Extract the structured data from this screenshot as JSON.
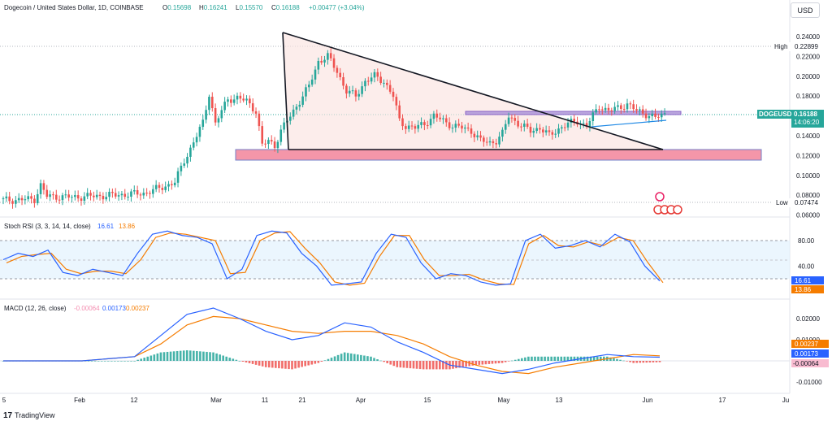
{
  "header": {
    "title": "Dogecoin / United States Dollar, 1D, COINBASE",
    "o_label": "O",
    "o": "0.15698",
    "h_label": "H",
    "h": "0.16241",
    "l_label": "L",
    "l": "0.15570",
    "c_label": "C",
    "c": "0.16188",
    "change": "+0.00477 (+3.04%)",
    "currency_button": "USD"
  },
  "colors": {
    "up": "#26a69a",
    "down": "#ef5350",
    "rsi_k": "#2962ff",
    "rsi_d": "#f57c00",
    "macd": "#2962ff",
    "signal": "#f57c00",
    "price_tag": "#26a69a",
    "support_zone": "#f06a85",
    "resistance_zone": "#b39ddb"
  },
  "price_labels": {
    "high_label": "High",
    "high_value": "0.22899",
    "low_label": "Low",
    "low_value": "0.07474",
    "symbol_tag": "DOGEUSD",
    "last_price": "0.16188",
    "countdown": "14:06:20"
  },
  "brand": {
    "logo_text": "17",
    "name": "TradingView"
  },
  "chart_data": [
    {
      "type": "candlestick",
      "title": "Dogecoin / United States Dollar, 1D, COINBASE",
      "x_ticks": [
        "5",
        "Feb",
        "12",
        "Mar",
        "11",
        "21",
        "Apr",
        "15",
        "May",
        "13",
        "Jun",
        "17",
        "Ju"
      ],
      "y_ticks": [
        "0.24000",
        "0.22000",
        "0.20000",
        "0.18000",
        "0.16000",
        "0.14000",
        "0.12000",
        "0.10000",
        "0.08000",
        "0.06000"
      ],
      "ylim": [
        0.06,
        0.245
      ],
      "annotations": [
        "descending triangle",
        "support zone 0.117-0.128",
        "resistance zone 0.160-0.163",
        "ascending trendline"
      ],
      "close_anchors": [
        {
          "x": 0,
          "y": 0.075
        },
        {
          "x": 10,
          "y": 0.076
        },
        {
          "x": 12,
          "y": 0.09
        },
        {
          "x": 14,
          "y": 0.079
        },
        {
          "x": 22,
          "y": 0.078
        },
        {
          "x": 35,
          "y": 0.08
        },
        {
          "x": 45,
          "y": 0.082
        },
        {
          "x": 50,
          "y": 0.087
        },
        {
          "x": 55,
          "y": 0.093
        },
        {
          "x": 58,
          "y": 0.115
        },
        {
          "x": 60,
          "y": 0.127
        },
        {
          "x": 62,
          "y": 0.14
        },
        {
          "x": 64,
          "y": 0.153
        },
        {
          "x": 66,
          "y": 0.183
        },
        {
          "x": 68,
          "y": 0.152
        },
        {
          "x": 70,
          "y": 0.165
        },
        {
          "x": 72,
          "y": 0.177
        },
        {
          "x": 75,
          "y": 0.178
        },
        {
          "x": 78,
          "y": 0.175
        },
        {
          "x": 81,
          "y": 0.165
        },
        {
          "x": 83,
          "y": 0.13
        },
        {
          "x": 85,
          "y": 0.135
        },
        {
          "x": 87,
          "y": 0.13
        },
        {
          "x": 89,
          "y": 0.145
        },
        {
          "x": 92,
          "y": 0.16
        },
        {
          "x": 95,
          "y": 0.175
        },
        {
          "x": 98,
          "y": 0.19
        },
        {
          "x": 101,
          "y": 0.215
        },
        {
          "x": 104,
          "y": 0.22
        },
        {
          "x": 107,
          "y": 0.205
        },
        {
          "x": 110,
          "y": 0.185
        },
        {
          "x": 113,
          "y": 0.18
        },
        {
          "x": 116,
          "y": 0.195
        },
        {
          "x": 119,
          "y": 0.2
        },
        {
          "x": 122,
          "y": 0.195
        },
        {
          "x": 125,
          "y": 0.18
        },
        {
          "x": 127,
          "y": 0.155
        },
        {
          "x": 129,
          "y": 0.15
        },
        {
          "x": 132,
          "y": 0.148
        },
        {
          "x": 135,
          "y": 0.152
        },
        {
          "x": 138,
          "y": 0.16
        },
        {
          "x": 141,
          "y": 0.155
        },
        {
          "x": 144,
          "y": 0.15
        },
        {
          "x": 147,
          "y": 0.148
        },
        {
          "x": 150,
          "y": 0.145
        },
        {
          "x": 153,
          "y": 0.135
        },
        {
          "x": 156,
          "y": 0.133
        },
        {
          "x": 158,
          "y": 0.135
        },
        {
          "x": 160,
          "y": 0.142
        },
        {
          "x": 162,
          "y": 0.16
        },
        {
          "x": 164,
          "y": 0.155
        },
        {
          "x": 166,
          "y": 0.15
        },
        {
          "x": 169,
          "y": 0.145
        },
        {
          "x": 172,
          "y": 0.148
        },
        {
          "x": 175,
          "y": 0.14
        },
        {
          "x": 178,
          "y": 0.147
        },
        {
          "x": 181,
          "y": 0.152
        },
        {
          "x": 184,
          "y": 0.155
        },
        {
          "x": 187,
          "y": 0.15
        },
        {
          "x": 189,
          "y": 0.16
        },
        {
          "x": 191,
          "y": 0.17
        },
        {
          "x": 194,
          "y": 0.165
        },
        {
          "x": 197,
          "y": 0.168
        },
        {
          "x": 200,
          "y": 0.172
        },
        {
          "x": 203,
          "y": 0.165
        },
        {
          "x": 206,
          "y": 0.162
        },
        {
          "x": 209,
          "y": 0.158
        },
        {
          "x": 212,
          "y": 0.162
        }
      ]
    },
    {
      "type": "line",
      "title": "Stoch RSI (3, 3, 14, 14, close)",
      "values_label": [
        "16.61",
        "13.86"
      ],
      "y_ticks": [
        "80.00",
        "40.00"
      ],
      "ylim": [
        0,
        100
      ],
      "band": [
        20,
        80
      ],
      "series": [
        {
          "name": "K",
          "values": [
            50,
            60,
            55,
            65,
            30,
            25,
            35,
            30,
            25,
            60,
            90,
            95,
            88,
            85,
            75,
            20,
            35,
            88,
            95,
            92,
            60,
            40,
            10,
            12,
            15,
            60,
            90,
            85,
            45,
            20,
            28,
            25,
            15,
            10,
            12,
            80,
            90,
            68,
            72,
            80,
            70,
            90,
            78,
            40,
            16.61
          ]
        },
        {
          "name": "D",
          "values": [
            45,
            55,
            58,
            60,
            35,
            28,
            32,
            32,
            28,
            50,
            85,
            92,
            90,
            85,
            80,
            28,
            30,
            80,
            92,
            94,
            68,
            45,
            15,
            10,
            13,
            55,
            88,
            88,
            50,
            25,
            25,
            27,
            18,
            12,
            11,
            75,
            88,
            72,
            70,
            78,
            72,
            85,
            80,
            45,
            13.86
          ]
        }
      ]
    },
    {
      "type": "bar_line",
      "title": "MACD (12, 26, close)",
      "values_label": [
        "-0.00064",
        "0.00173",
        "0.00237"
      ],
      "y_ticks": [
        "0.02000",
        "0.01000",
        "-0.01000"
      ],
      "ylim": [
        -0.013,
        0.026
      ],
      "series": [
        {
          "name": "MACD",
          "values": [
            0,
            0,
            0,
            0,
            0.001,
            0.002,
            0.012,
            0.022,
            0.025,
            0.02,
            0.014,
            0.01,
            0.012,
            0.018,
            0.016,
            0.009,
            0.004,
            -0.002,
            -0.004,
            -0.006,
            -0.004,
            -0.001,
            0.001,
            0.003,
            0.002,
            0.00173
          ]
        },
        {
          "name": "Signal",
          "values": [
            0,
            0,
            0,
            0,
            0.001,
            0.002,
            0.008,
            0.017,
            0.021,
            0.02,
            0.017,
            0.014,
            0.013,
            0.014,
            0.014,
            0.012,
            0.008,
            0.002,
            -0.002,
            -0.005,
            -0.006,
            -0.003,
            -0.001,
            0.001,
            0.003,
            0.00237
          ]
        }
      ]
    }
  ]
}
